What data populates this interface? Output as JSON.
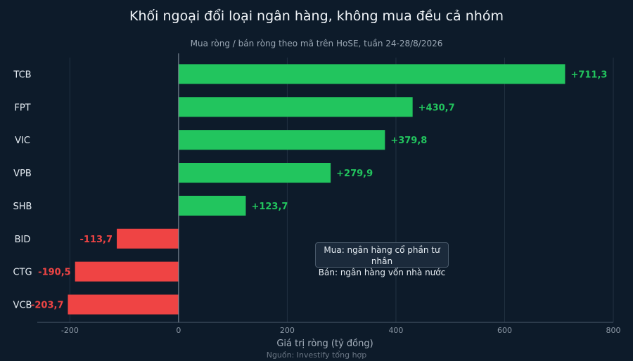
{
  "chart_data": {
    "type": "bar",
    "orientation": "horizontal",
    "title": "Khối ngoại đổi loại ngân hàng, không mua đều cả nhóm",
    "subtitle": "Mua ròng / bán ròng theo mã trên HoSE, tuần 24-28/8/2026",
    "xlabel": "Giá trị ròng (tỷ đồng)",
    "ylabel": "",
    "source": "Nguồn: Investify tổng hợp",
    "categories": [
      "TCB",
      "FPT",
      "VIC",
      "VPB",
      "SHB",
      "BID",
      "CTG",
      "VCB"
    ],
    "values": [
      711.3,
      430.7,
      379.8,
      279.9,
      123.7,
      -113.7,
      -190.5,
      -203.7
    ],
    "value_labels": [
      "+711,3",
      "+430,7",
      "+379,8",
      "+279,9",
      "+123,7",
      "-113,7",
      "-190,5",
      "-203,7"
    ],
    "xlim": [
      -260,
      800
    ],
    "xticks": [
      -200,
      0,
      200,
      400,
      600,
      800
    ],
    "xtick_labels": [
      "-200",
      "0",
      "200",
      "400",
      "600",
      "800"
    ],
    "grid": true,
    "colors": {
      "positive": "#22c55e",
      "negative": "#ef4444",
      "background": "#0d1b2a"
    },
    "annotation": {
      "line1": "Mua: ngân hàng cổ phần tư nhân",
      "line2": "Bán: ngân hàng vốn nhà nước"
    }
  }
}
